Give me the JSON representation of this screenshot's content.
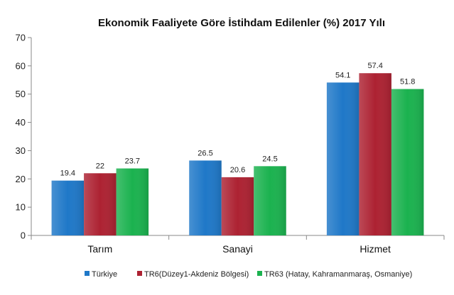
{
  "chart_data": {
    "type": "bar",
    "title": "Ekonomik Faaliyete Göre  İstihdam  Edilenler (%) 2017 Yılı",
    "xlabel": "",
    "ylabel": "",
    "ylim": [
      0,
      70
    ],
    "yticks": [
      0,
      10,
      20,
      30,
      40,
      50,
      60,
      70
    ],
    "grid": false,
    "legend_position": "bottom",
    "categories": [
      "Tarım",
      "Sanayi",
      "Hizmet"
    ],
    "series": [
      {
        "name": "Türkiye",
        "color": "#1f78c8",
        "values": [
          19.4,
          26.5,
          54.1
        ],
        "labels": [
          "19.4",
          "26.5",
          "54.1"
        ]
      },
      {
        "name": "TR6(Düzey1-Akdeniz Bölgesi)",
        "color": "#ad2232",
        "values": [
          22,
          20.6,
          57.4
        ],
        "labels": [
          "22",
          "20.6",
          "57.4"
        ]
      },
      {
        "name": "TR63 (Hatay, Kahramanmaraş, Osmaniye)",
        "color": "#1bb24f",
        "values": [
          23.7,
          24.5,
          51.8
        ],
        "labels": [
          "23.7",
          "24.5",
          "51.8"
        ]
      }
    ]
  }
}
